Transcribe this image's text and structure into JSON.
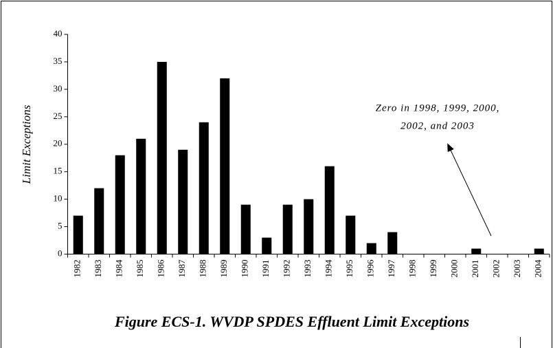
{
  "chart_data": {
    "type": "bar",
    "title": "Figure ECS-1. WVDP SPDES Effluent Limit Exceptions",
    "y_label": "Limit Exceptions",
    "annotation": [
      "Zero in 1998, 1999, 2000,",
      "2002, and 2003"
    ],
    "categories": [
      "1982",
      "1983",
      "1984",
      "1985",
      "1986",
      "1987",
      "1988",
      "1989",
      "1990",
      "1991",
      "1992",
      "1993",
      "1994",
      "1995",
      "1996",
      "1997",
      "1998",
      "1999",
      "2000",
      "2001",
      "2002",
      "2003",
      "2004"
    ],
    "values": [
      7,
      12,
      18,
      21,
      35,
      19,
      24,
      32,
      9,
      3,
      9,
      10,
      16,
      7,
      2,
      4,
      0,
      0,
      0,
      1,
      0,
      0,
      1
    ],
    "color": "#000000",
    "ylim": [
      0,
      40
    ],
    "yticks": [
      0,
      5,
      10,
      15,
      20,
      25,
      30,
      35,
      40
    ],
    "grid": false
  }
}
